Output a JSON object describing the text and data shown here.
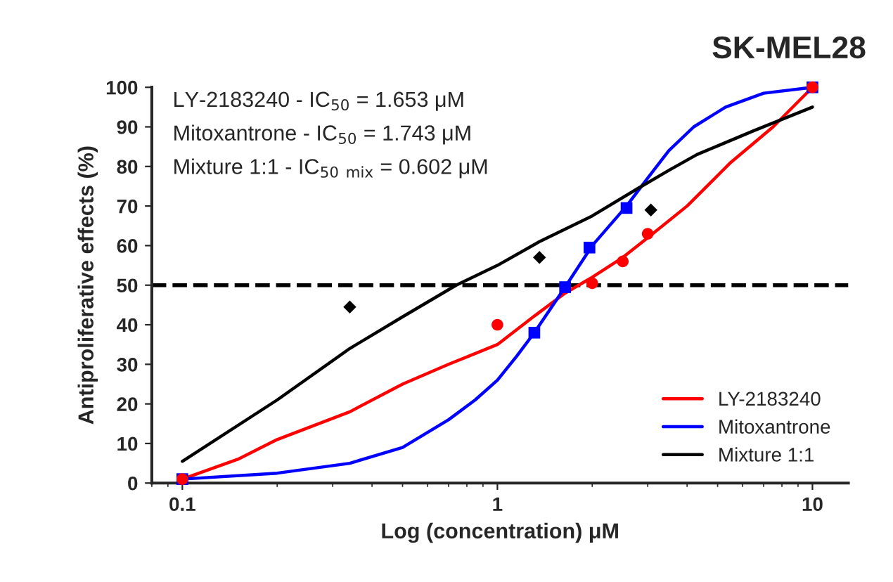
{
  "chart_data": {
    "type": "line",
    "title": "SK-MEL28",
    "xlabel": "Log (concentration) μM",
    "ylabel": "Antiproliferative effects (%)",
    "annotations": [
      "LY-2183240 - IC$_{50}$ = 1.653 μM",
      "Mitoxantrone - IC$_{50}$ = 1.743 μM",
      "Mixture 1:1 - IC$_{50}$ $_{mix}$ = 0.602 μM"
    ],
    "log": "x",
    "xlim": [
      0.08,
      13
    ],
    "xticks": [
      0.1,
      1,
      10
    ],
    "ylim": [
      0,
      100
    ],
    "yticks": [
      0,
      10,
      20,
      30,
      40,
      50,
      60,
      70,
      80,
      90,
      100
    ],
    "grid": false,
    "legend": "bottom right",
    "ref_lines": [
      {
        "axis": "y",
        "value": 50,
        "color": "#000000",
        "line_style": "dashed"
      }
    ],
    "series": [
      {
        "name": "LY-2183240",
        "color": "#ff0000",
        "marker": "none",
        "x": [
          0.1,
          0.15,
          0.2,
          0.34,
          0.5,
          0.7,
          1,
          1.3,
          1.64,
          2,
          2.5,
          3,
          4,
          5.5,
          7.5,
          10
        ],
        "values": [
          1,
          6,
          11,
          18,
          25,
          30,
          35,
          42,
          48,
          52,
          57,
          62,
          70,
          81,
          90,
          100
        ]
      },
      {
        "name": "Mitoxantrone",
        "color": "#0000ff",
        "marker": "none",
        "x": [
          0.1,
          0.2,
          0.34,
          0.5,
          0.7,
          0.85,
          1,
          1.15,
          1.31,
          1.64,
          2,
          2.57,
          2.93,
          3.5,
          4.2,
          5.3,
          7,
          10
        ],
        "values": [
          1,
          2.5,
          5,
          9,
          16,
          21,
          26,
          32,
          38,
          49.5,
          60,
          70,
          76,
          84,
          90,
          95,
          98.5,
          100
        ]
      },
      {
        "name": "Mixture 1:1",
        "color": "#000000",
        "marker": "none",
        "x": [
          0.1,
          0.2,
          0.34,
          0.5,
          0.74,
          1,
          1.36,
          2,
          2.8,
          3.5,
          4.3,
          6.5,
          10
        ],
        "values": [
          5.5,
          21,
          34,
          42,
          50,
          55,
          61,
          67.5,
          74.5,
          79,
          83,
          89,
          95
        ]
      },
      {
        "type": "scatter",
        "color": "#0000ff",
        "marker": "square",
        "x": [
          0.1,
          1.31,
          1.64,
          1.96,
          2.57,
          10
        ],
        "values": [
          1,
          38,
          49.5,
          59.5,
          69.5,
          100
        ]
      },
      {
        "type": "scatter",
        "color": "#ff0000",
        "marker": "circle",
        "x": [
          0.1,
          1,
          2,
          2.5,
          3,
          10
        ],
        "values": [
          1,
          40,
          50.5,
          56,
          63,
          100
        ]
      },
      {
        "type": "scatter",
        "color": "#000000",
        "marker": "diamond",
        "x": [
          0.34,
          1.36,
          3.07
        ],
        "values": [
          44.5,
          57,
          69
        ]
      }
    ]
  }
}
